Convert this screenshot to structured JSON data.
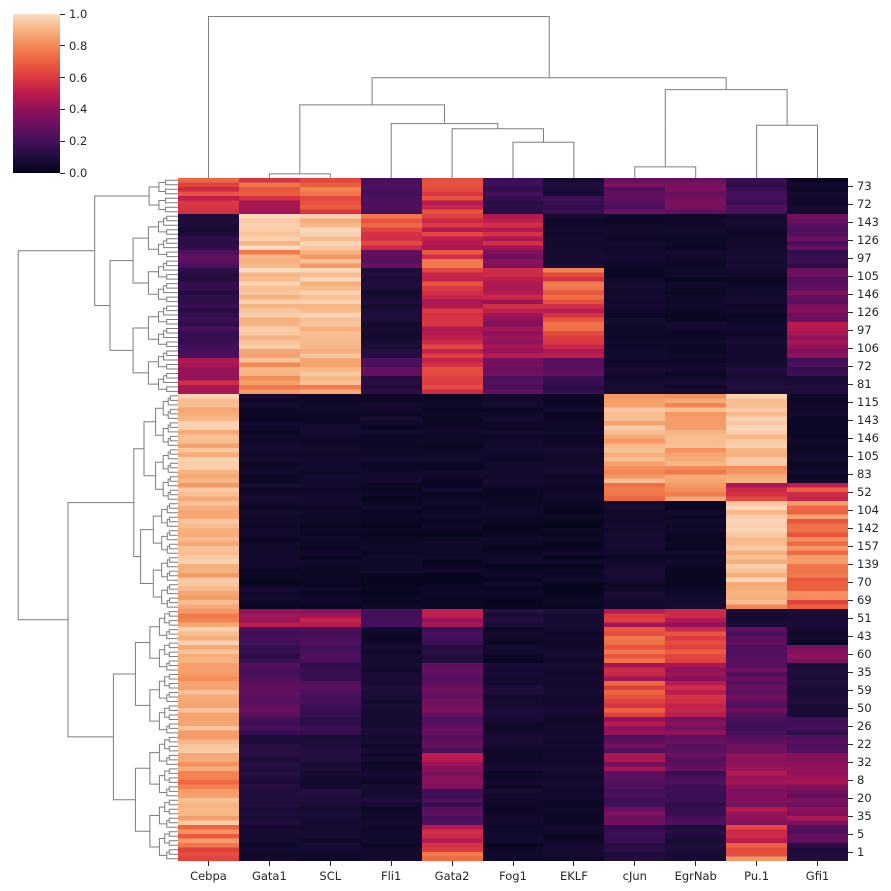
{
  "chart_data": {
    "type": "heatmap",
    "title": "",
    "colormap": "rocket",
    "legend_position": "top-left colorbar",
    "grid": false,
    "columns": [
      "Cebpa",
      "Gata1",
      "SCL",
      "Fli1",
      "Gata2",
      "Fog1",
      "EKLF",
      "cJun",
      "EgrNab",
      "Pu.1",
      "Gfi1"
    ],
    "row_labels": [
      "73",
      "72",
      "143",
      "126",
      "97",
      "105",
      "146",
      "126",
      "97",
      "106",
      "72",
      "81",
      "115",
      "143",
      "146",
      "105",
      "83",
      "52",
      "104",
      "142",
      "157",
      "139",
      "70",
      "69",
      "51",
      "43",
      "60",
      "35",
      "59",
      "50",
      "26",
      "22",
      "32",
      "8",
      "20",
      "35",
      "5",
      "1"
    ],
    "values": [
      [
        0.65,
        0.66,
        0.7,
        0.2,
        0.62,
        0.18,
        0.08,
        0.3,
        0.3,
        0.18,
        0.05
      ],
      [
        0.55,
        0.52,
        0.64,
        0.22,
        0.58,
        0.15,
        0.18,
        0.26,
        0.32,
        0.2,
        0.06
      ],
      [
        0.1,
        0.95,
        0.93,
        0.7,
        0.57,
        0.5,
        0.06,
        0.05,
        0.04,
        0.05,
        0.28
      ],
      [
        0.12,
        0.95,
        0.94,
        0.55,
        0.55,
        0.5,
        0.06,
        0.05,
        0.04,
        0.05,
        0.26
      ],
      [
        0.27,
        0.84,
        0.9,
        0.3,
        0.66,
        0.33,
        0.08,
        0.06,
        0.05,
        0.06,
        0.16
      ],
      [
        0.13,
        0.95,
        0.93,
        0.1,
        0.6,
        0.5,
        0.68,
        0.05,
        0.04,
        0.05,
        0.28
      ],
      [
        0.13,
        0.93,
        0.92,
        0.08,
        0.55,
        0.5,
        0.72,
        0.05,
        0.04,
        0.05,
        0.3
      ],
      [
        0.15,
        0.93,
        0.92,
        0.08,
        0.55,
        0.48,
        0.6,
        0.05,
        0.04,
        0.06,
        0.34
      ],
      [
        0.18,
        0.93,
        0.92,
        0.08,
        0.52,
        0.45,
        0.65,
        0.05,
        0.05,
        0.06,
        0.44
      ],
      [
        0.2,
        0.92,
        0.92,
        0.1,
        0.55,
        0.45,
        0.5,
        0.05,
        0.05,
        0.07,
        0.4
      ],
      [
        0.4,
        0.86,
        0.9,
        0.25,
        0.6,
        0.3,
        0.3,
        0.06,
        0.06,
        0.08,
        0.2
      ],
      [
        0.5,
        0.76,
        0.85,
        0.12,
        0.6,
        0.27,
        0.15,
        0.06,
        0.06,
        0.08,
        0.1
      ],
      [
        0.92,
        0.05,
        0.05,
        0.05,
        0.04,
        0.05,
        0.05,
        0.88,
        0.85,
        0.94,
        0.05
      ],
      [
        0.92,
        0.05,
        0.05,
        0.05,
        0.04,
        0.05,
        0.05,
        0.9,
        0.87,
        0.95,
        0.04
      ],
      [
        0.92,
        0.05,
        0.05,
        0.05,
        0.04,
        0.05,
        0.05,
        0.9,
        0.88,
        0.95,
        0.04
      ],
      [
        0.92,
        0.05,
        0.05,
        0.05,
        0.04,
        0.05,
        0.05,
        0.88,
        0.86,
        0.93,
        0.04
      ],
      [
        0.9,
        0.05,
        0.05,
        0.05,
        0.04,
        0.05,
        0.05,
        0.85,
        0.84,
        0.86,
        0.04
      ],
      [
        0.9,
        0.06,
        0.05,
        0.04,
        0.04,
        0.04,
        0.04,
        0.8,
        0.8,
        0.56,
        0.6
      ],
      [
        0.92,
        0.04,
        0.04,
        0.03,
        0.03,
        0.03,
        0.03,
        0.06,
        0.04,
        0.95,
        0.8
      ],
      [
        0.92,
        0.04,
        0.04,
        0.03,
        0.03,
        0.03,
        0.03,
        0.06,
        0.04,
        0.95,
        0.76
      ],
      [
        0.91,
        0.04,
        0.04,
        0.03,
        0.03,
        0.03,
        0.03,
        0.06,
        0.04,
        0.94,
        0.78
      ],
      [
        0.91,
        0.04,
        0.04,
        0.03,
        0.03,
        0.03,
        0.03,
        0.06,
        0.04,
        0.94,
        0.8
      ],
      [
        0.9,
        0.04,
        0.04,
        0.03,
        0.03,
        0.03,
        0.03,
        0.06,
        0.04,
        0.93,
        0.66
      ],
      [
        0.88,
        0.05,
        0.04,
        0.03,
        0.04,
        0.03,
        0.03,
        0.08,
        0.05,
        0.85,
        0.72
      ],
      [
        0.84,
        0.46,
        0.45,
        0.2,
        0.46,
        0.1,
        0.08,
        0.52,
        0.46,
        0.08,
        0.1
      ],
      [
        0.92,
        0.2,
        0.22,
        0.05,
        0.18,
        0.05,
        0.05,
        0.72,
        0.58,
        0.26,
        0.05
      ],
      [
        0.9,
        0.15,
        0.2,
        0.06,
        0.12,
        0.05,
        0.06,
        0.74,
        0.68,
        0.28,
        0.4
      ],
      [
        0.88,
        0.25,
        0.15,
        0.06,
        0.25,
        0.06,
        0.06,
        0.48,
        0.42,
        0.28,
        0.1
      ],
      [
        0.92,
        0.3,
        0.25,
        0.1,
        0.3,
        0.08,
        0.07,
        0.64,
        0.55,
        0.28,
        0.1
      ],
      [
        0.9,
        0.25,
        0.2,
        0.08,
        0.3,
        0.08,
        0.06,
        0.62,
        0.52,
        0.28,
        0.1
      ],
      [
        0.88,
        0.2,
        0.15,
        0.08,
        0.25,
        0.06,
        0.06,
        0.45,
        0.4,
        0.22,
        0.18
      ],
      [
        0.9,
        0.12,
        0.1,
        0.06,
        0.25,
        0.06,
        0.05,
        0.28,
        0.3,
        0.28,
        0.22
      ],
      [
        0.85,
        0.1,
        0.1,
        0.06,
        0.45,
        0.06,
        0.05,
        0.4,
        0.3,
        0.35,
        0.35
      ],
      [
        0.8,
        0.1,
        0.08,
        0.06,
        0.42,
        0.05,
        0.05,
        0.26,
        0.2,
        0.4,
        0.4
      ],
      [
        0.85,
        0.1,
        0.1,
        0.08,
        0.2,
        0.06,
        0.05,
        0.2,
        0.16,
        0.35,
        0.3
      ],
      [
        0.9,
        0.08,
        0.08,
        0.06,
        0.25,
        0.05,
        0.05,
        0.3,
        0.2,
        0.42,
        0.42
      ],
      [
        0.78,
        0.06,
        0.06,
        0.05,
        0.52,
        0.05,
        0.05,
        0.15,
        0.1,
        0.55,
        0.25
      ],
      [
        0.72,
        0.06,
        0.06,
        0.05,
        0.66,
        0.05,
        0.05,
        0.12,
        0.08,
        0.74,
        0.12
      ]
    ],
    "value_range": [
      0,
      1
    ],
    "colorbar": {
      "ticks": [
        "1.0",
        "0.8",
        "0.6",
        "0.4",
        "0.2",
        "0.0"
      ],
      "min": 0.0,
      "max": 1.0
    },
    "palette": [
      [
        0.0,
        "#030519"
      ],
      [
        0.1,
        "#1F0D3C"
      ],
      [
        0.2,
        "#43105B"
      ],
      [
        0.3,
        "#69105F"
      ],
      [
        0.4,
        "#8F125B"
      ],
      [
        0.5,
        "#BB1B4F"
      ],
      [
        0.6,
        "#DC3A41"
      ],
      [
        0.7,
        "#ED5F3E"
      ],
      [
        0.8,
        "#F38955"
      ],
      [
        0.9,
        "#F6B27F"
      ],
      [
        1.0,
        "#FBDDC4"
      ]
    ],
    "col_dendrogram": [
      0.95,
      0,
      [
        0.59,
        [
          0.43,
          [
            0.024,
            1,
            2
          ],
          [
            0.32,
            3,
            [
              0.29,
              4,
              [
                0.21,
                5,
                6
              ]
            ]
          ]
        ],
        [
          0.52,
          [
            0.065,
            7,
            8
          ],
          [
            0.31,
            9,
            10
          ]
        ]
      ]
    ],
    "row_dendrogram": {
      "micro_per_row": 4,
      "blocks": [
        {
          "rows": [
            0,
            1
          ],
          "scale": 0.17
        },
        {
          "rows": [
            2,
            11
          ],
          "scale": 0.4
        },
        {
          "rows": [
            12,
            17
          ],
          "scale": 0.2
        },
        {
          "rows": [
            18,
            23
          ],
          "scale": 0.22
        },
        {
          "rows": [
            24,
            37
          ],
          "scale": 0.38
        }
      ],
      "tree": [
        0.94,
        [
          0.49,
          "b0",
          "b1"
        ],
        [
          0.647,
          [
            0.26,
            "b2",
            "b3"
          ],
          "b4"
        ]
      ],
      "line_color": "#7d7d7d"
    }
  }
}
